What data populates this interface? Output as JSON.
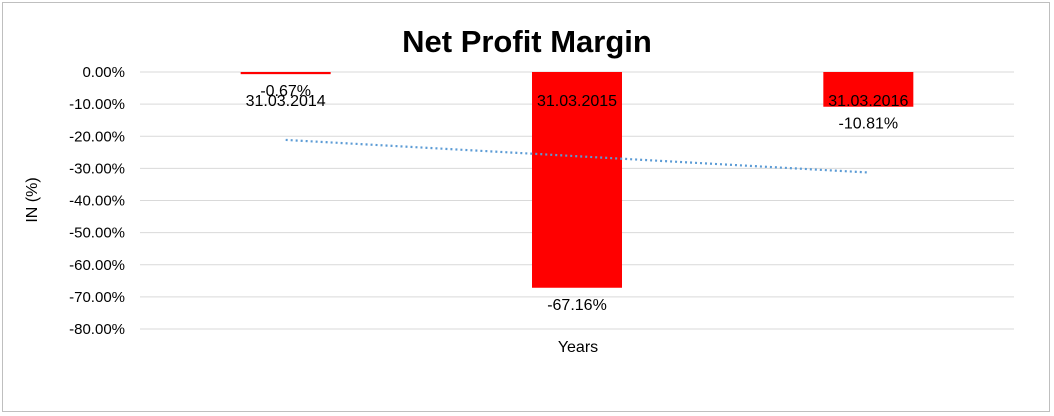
{
  "chart_data": {
    "type": "bar",
    "title": "Net Profit Margin",
    "xlabel": "Years",
    "ylabel": "IN (%)",
    "categories": [
      "31.03.2014",
      "31.03.2015",
      "31.03.2016"
    ],
    "series": [
      {
        "values": [
          -0.67,
          -67.16,
          -10.81
        ],
        "data_labels": [
          "-0.67%",
          "-67.16%",
          "-10.81%"
        ],
        "color": "#ff0000"
      }
    ],
    "trendline": {
      "type": "linear",
      "style": "dotted",
      "color": "#5b9bd5"
    },
    "ylim": [
      -80,
      0
    ],
    "yticks": [
      0,
      -10,
      -20,
      -30,
      -40,
      -50,
      -60,
      -70,
      -80
    ],
    "ytick_labels": [
      "0.00%",
      "-10.00%",
      "-20.00%",
      "-30.00%",
      "-40.00%",
      "-50.00%",
      "-60.00%",
      "-70.00%",
      "-80.00%"
    ],
    "grid": true,
    "legend": "none"
  }
}
